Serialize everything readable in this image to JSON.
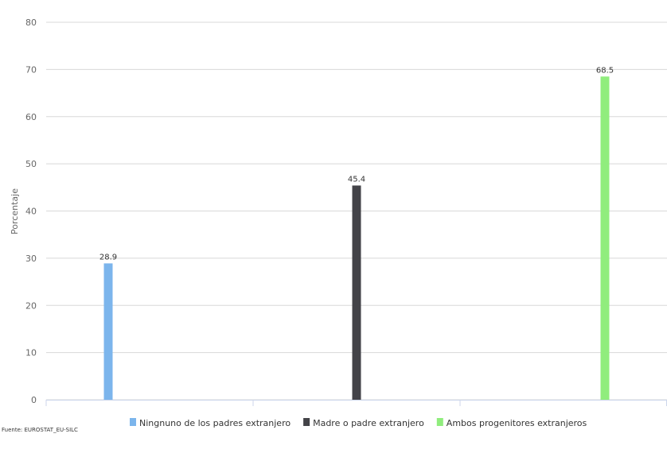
{
  "chart_data": {
    "type": "bar",
    "y_label": "Porcentaje",
    "source": "Fuente: EUROSTAT_EU-SILC",
    "categories": [
      null,
      null,
      null
    ],
    "series": [
      {
        "name": "Ningnuno de los padres extranjero",
        "color": "#7cb5ec",
        "values": [
          28.9,
          null,
          null
        ]
      },
      {
        "name": "Madre o padre extranjero",
        "color": "#434348",
        "values": [
          null,
          45.4,
          null
        ]
      },
      {
        "name": "Ambos progenitores extranjeros",
        "color": "#90ed7d",
        "values": [
          null,
          null,
          68.5
        ]
      }
    ],
    "ylim": [
      0,
      80
    ],
    "yticks": [
      0,
      10,
      20,
      30,
      40,
      50,
      60,
      70,
      80
    ],
    "grid": true
  }
}
